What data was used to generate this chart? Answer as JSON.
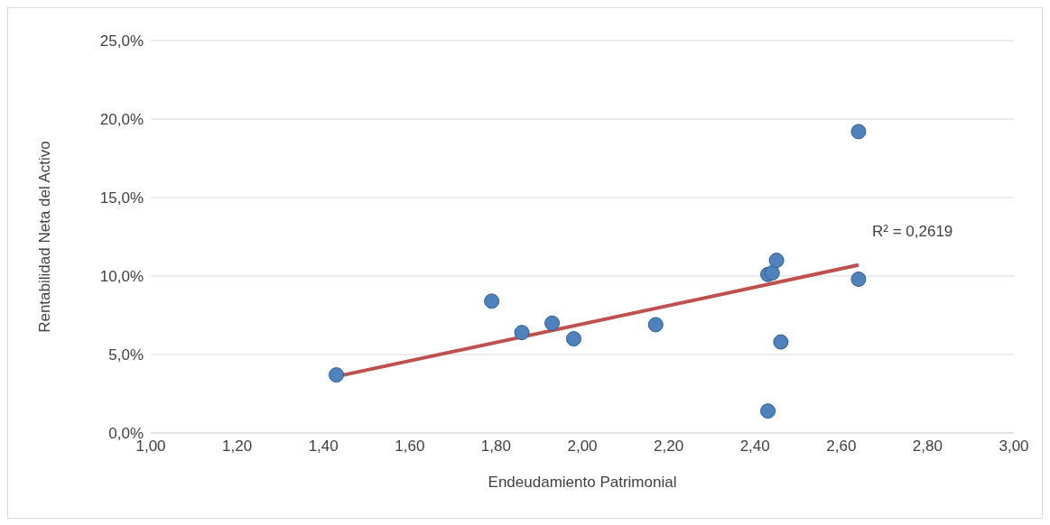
{
  "chart_data": {
    "type": "scatter",
    "xlabel": "Endeudamiento Patrimonial",
    "ylabel": "Rentabilidad Neta del Activo",
    "xlim": [
      1,
      3
    ],
    "xticks": [
      {
        "value": 1,
        "label": "1,00"
      },
      {
        "value": 1.2,
        "label": "1,20"
      },
      {
        "value": 1.4,
        "label": "1,40"
      },
      {
        "value": 1.6,
        "label": "1,60"
      },
      {
        "value": 1.8,
        "label": "1,80"
      },
      {
        "value": 2,
        "label": "2,00"
      },
      {
        "value": 2.2,
        "label": "2,20"
      },
      {
        "value": 2.4,
        "label": "2,40"
      },
      {
        "value": 2.6,
        "label": "2,60"
      },
      {
        "value": 2.8,
        "label": "2,80"
      },
      {
        "value": 3,
        "label": "3,00"
      }
    ],
    "ylim": [
      0,
      25
    ],
    "yticks": [
      {
        "value": 0,
        "label": "0,0%"
      },
      {
        "value": 5,
        "label": "5,0%"
      },
      {
        "value": 10,
        "label": "10,0%"
      },
      {
        "value": 15,
        "label": "15,0%"
      },
      {
        "value": 20,
        "label": "20,0%"
      },
      {
        "value": 25,
        "label": "25,0%"
      }
    ],
    "grid": "y",
    "series": [
      {
        "marker": "circle",
        "color": "#4f81bd",
        "x": [
          1.43,
          1.79,
          1.86,
          1.93,
          1.98,
          2.17,
          2.43,
          2.43,
          2.44,
          2.45,
          2.46,
          2.64,
          2.64
        ],
        "values": [
          3.7,
          8.4,
          6.4,
          7.0,
          6.0,
          6.9,
          1.4,
          10.1,
          10.2,
          11.0,
          5.8,
          19.2,
          9.8
        ]
      },
      {
        "type": "line",
        "color": "#c0504d",
        "x": [
          1.43,
          2.64
        ],
        "values": [
          3.6,
          10.7
        ],
        "line_style": "solid"
      }
    ],
    "annotations": [
      "R² = 0,2619"
    ]
  }
}
